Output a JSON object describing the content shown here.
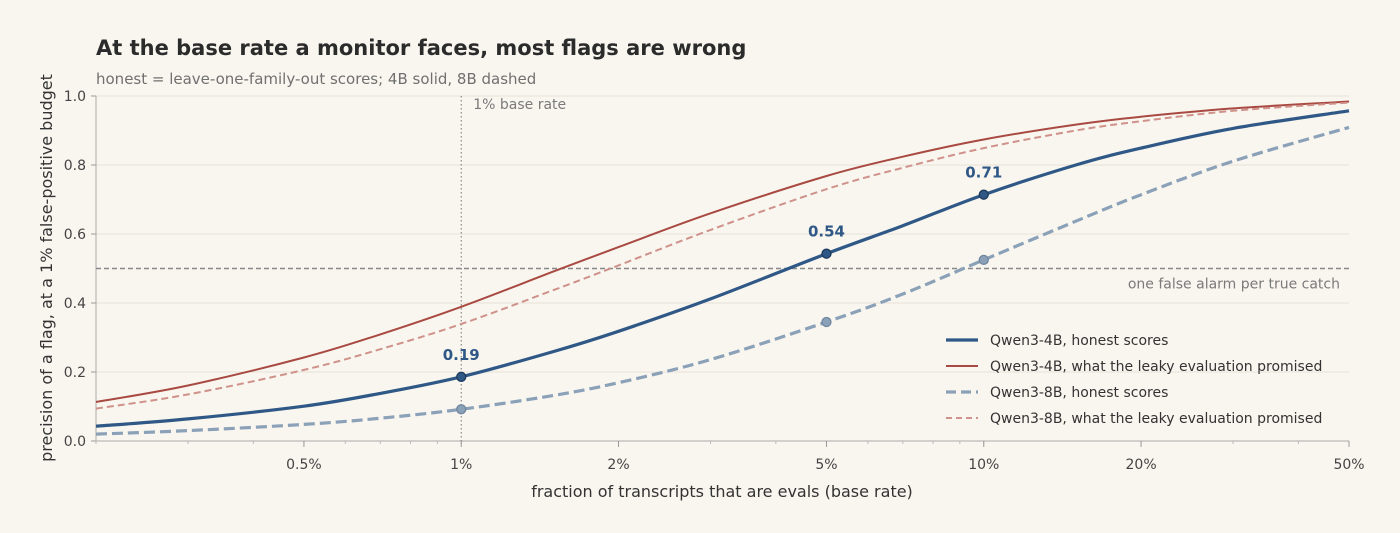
{
  "chart_data": {
    "type": "line",
    "title": "At the base rate a monitor faces, most flags are wrong",
    "subtitle": "honest = leave-one-family-out scores; 4B solid, 8B dashed",
    "xlabel": "fraction of transcripts that are evals (base rate)",
    "ylabel": "precision of a flag, at a 1% false-positive budget",
    "xscale": "log",
    "xlim": [
      0.002,
      0.5
    ],
    "ylim": [
      0,
      1.0
    ],
    "x_ticks": [
      {
        "value": 0.005,
        "label": "0.5%"
      },
      {
        "value": 0.01,
        "label": "1%"
      },
      {
        "value": 0.02,
        "label": "2%"
      },
      {
        "value": 0.05,
        "label": "5%"
      },
      {
        "value": 0.1,
        "label": "10%"
      },
      {
        "value": 0.2,
        "label": "20%"
      },
      {
        "value": 0.5,
        "label": "50%"
      }
    ],
    "y_ticks": [
      {
        "value": 0.0,
        "label": "0.0"
      },
      {
        "value": 0.2,
        "label": "0.2"
      },
      {
        "value": 0.4,
        "label": "0.4"
      },
      {
        "value": 0.6,
        "label": "0.6"
      },
      {
        "value": 0.8,
        "label": "0.8"
      },
      {
        "value": 1.0,
        "label": "1.0"
      }
    ],
    "grid": "horizontal",
    "legend": "bottom-right",
    "series": [
      {
        "name": "Qwen3-4B, honest scores",
        "color": "#2f5886",
        "style": "solid-thick",
        "x": [
          0.002,
          0.003,
          0.005,
          0.007,
          0.01,
          0.015,
          0.02,
          0.03,
          0.05,
          0.07,
          0.1,
          0.15,
          0.2,
          0.3,
          0.5
        ],
        "y": [
          0.043,
          0.064,
          0.101,
          0.138,
          0.186,
          0.259,
          0.318,
          0.412,
          0.543,
          0.624,
          0.714,
          0.8,
          0.849,
          0.906,
          0.957
        ],
        "markers": [
          {
            "x": 0.01,
            "y": 0.186,
            "label": "0.19"
          },
          {
            "x": 0.05,
            "y": 0.543,
            "label": "0.54"
          },
          {
            "x": 0.1,
            "y": 0.714,
            "label": "0.71"
          }
        ]
      },
      {
        "name": "Qwen3-4B, what the leaky evaluation promised",
        "color": "#a94a42",
        "style": "solid",
        "x": [
          0.002,
          0.003,
          0.005,
          0.007,
          0.01,
          0.015,
          0.02,
          0.03,
          0.05,
          0.07,
          0.1,
          0.15,
          0.2,
          0.3,
          0.5
        ],
        "y": [
          0.113,
          0.161,
          0.242,
          0.309,
          0.389,
          0.491,
          0.562,
          0.66,
          0.768,
          0.824,
          0.874,
          0.917,
          0.94,
          0.964,
          0.984
        ]
      },
      {
        "name": "Qwen3-8B, honest scores",
        "color": "#8ba1b8",
        "style": "dashed-thick",
        "x": [
          0.002,
          0.003,
          0.005,
          0.007,
          0.01,
          0.015,
          0.02,
          0.03,
          0.05,
          0.07,
          0.1,
          0.15,
          0.2,
          0.3,
          0.5
        ],
        "y": [
          0.02,
          0.03,
          0.048,
          0.066,
          0.092,
          0.132,
          0.169,
          0.236,
          0.345,
          0.426,
          0.525,
          0.637,
          0.714,
          0.811,
          0.909
        ],
        "markers": [
          {
            "x": 0.01,
            "y": 0.092
          },
          {
            "x": 0.05,
            "y": 0.345
          },
          {
            "x": 0.1,
            "y": 0.525
          }
        ]
      },
      {
        "name": "Qwen3-8B, what the leaky evaluation promised",
        "color": "#cf928a",
        "style": "dashed",
        "x": [
          0.002,
          0.003,
          0.005,
          0.007,
          0.01,
          0.015,
          0.02,
          0.03,
          0.05,
          0.07,
          0.1,
          0.15,
          0.2,
          0.3,
          0.5
        ],
        "y": [
          0.094,
          0.135,
          0.206,
          0.266,
          0.339,
          0.437,
          0.509,
          0.612,
          0.73,
          0.792,
          0.849,
          0.9,
          0.927,
          0.957,
          0.981
        ]
      }
    ],
    "reference_lines": [
      {
        "orientation": "vertical",
        "x": 0.01,
        "label": "1% base rate"
      },
      {
        "orientation": "horizontal",
        "y": 0.5,
        "label": "one false alarm per true catch"
      }
    ]
  }
}
